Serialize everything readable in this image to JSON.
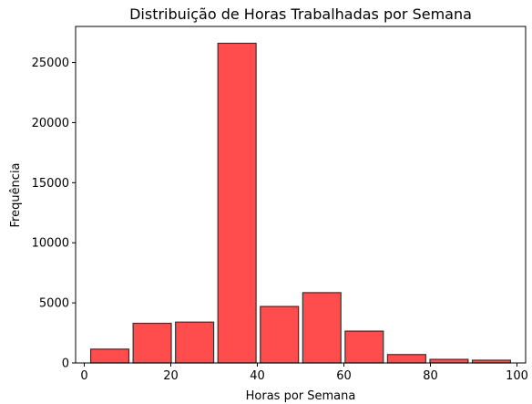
{
  "chart_data": {
    "type": "bar",
    "title": "Distribuição de Horas Trabalhadas por Semana",
    "xlabel": "Horas por Semana",
    "ylabel": "Frequência",
    "xlim": [
      -2,
      102
    ],
    "ylim": [
      0,
      28000
    ],
    "xticks": [
      0,
      20,
      40,
      60,
      80,
      100
    ],
    "yticks": [
      0,
      5000,
      10000,
      15000,
      20000,
      25000
    ],
    "grid": false,
    "bar_color": "#ff0000",
    "bar_opacity": 0.7,
    "edge_color": "#333333",
    "bins": [
      {
        "start": 1.0,
        "end": 10.8,
        "value": 1150
      },
      {
        "start": 10.8,
        "end": 20.6,
        "value": 3300
      },
      {
        "start": 20.6,
        "end": 30.4,
        "value": 3400
      },
      {
        "start": 30.4,
        "end": 40.2,
        "value": 26600
      },
      {
        "start": 40.2,
        "end": 50.0,
        "value": 4700
      },
      {
        "start": 50.0,
        "end": 59.8,
        "value": 5850
      },
      {
        "start": 59.8,
        "end": 69.6,
        "value": 2650
      },
      {
        "start": 69.6,
        "end": 79.4,
        "value": 700
      },
      {
        "start": 79.4,
        "end": 89.2,
        "value": 300
      },
      {
        "start": 89.2,
        "end": 99.0,
        "value": 230
      }
    ]
  }
}
